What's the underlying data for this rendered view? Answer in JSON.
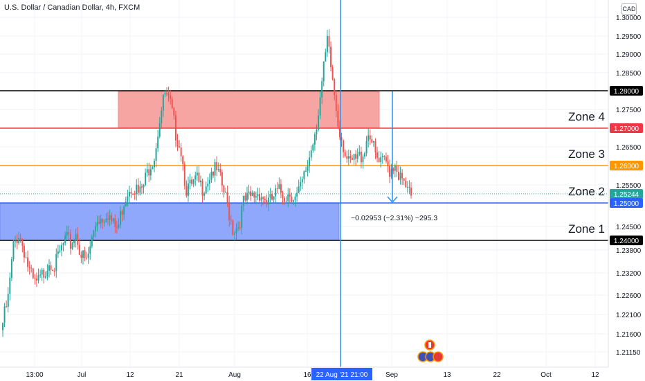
{
  "header": {
    "title": "U.S. Dollar / Canadian Dollar, 4h, FXCM",
    "currency_badge": "CAD"
  },
  "chart_data": {
    "type": "candlestick",
    "symbol": "U.S. Dollar / Canadian Dollar",
    "interval": "4h",
    "source": "FXCM",
    "y_axis": {
      "ticks": [
        "1.30000",
        "1.29500",
        "1.29000",
        "1.28500",
        "1.27500",
        "1.26500",
        "1.25500",
        "1.24500",
        "1.23800",
        "1.23200",
        "1.22600",
        "1.22100",
        "1.21600",
        "1.21150"
      ]
    },
    "x_axis": {
      "ticks": [
        "13:00",
        "Jul",
        "12",
        "21",
        "Aug",
        "16",
        "Sep",
        "13",
        "22",
        "Oct",
        "12"
      ],
      "crosshair_label": "22 Aug '21  21:00"
    },
    "levels": [
      {
        "value": 1.28,
        "label": "1.28000",
        "color": "#000000"
      },
      {
        "value": 1.27,
        "label": "1.27000",
        "color": "#f23645"
      },
      {
        "value": 1.26,
        "label": "1.26000",
        "color": "#ff9800"
      },
      {
        "value": 1.25244,
        "label": "1.25244",
        "color": "#26a69a",
        "type": "last-price"
      },
      {
        "value": 1.25,
        "label": "1.25000",
        "color": "#2962ff"
      },
      {
        "value": 1.24,
        "label": "1.24000",
        "color": "#000000"
      }
    ],
    "zones": [
      {
        "name": "Zone 4",
        "low": 1.27,
        "high": 1.28
      },
      {
        "name": "Zone 3",
        "low": 1.26,
        "high": 1.27
      },
      {
        "name": "Zone 2",
        "low": 1.25,
        "high": 1.26
      },
      {
        "name": "Zone 1",
        "low": 1.24,
        "high": 1.25
      }
    ],
    "measure_label": "−0.02953 (−2.31%) −295.3",
    "series_close": [
      1.218,
      1.224,
      1.238,
      1.242,
      1.238,
      1.232,
      1.228,
      1.229,
      1.232,
      1.235,
      1.233,
      1.237,
      1.24,
      1.239,
      1.242,
      1.236,
      1.234,
      1.24,
      1.246,
      1.246,
      1.248,
      1.244,
      1.243,
      1.25,
      1.254,
      1.255,
      1.252,
      1.255,
      1.26,
      1.263,
      1.273,
      1.279,
      1.276,
      1.269,
      1.265,
      1.254,
      1.254,
      1.256,
      1.254,
      1.256,
      1.259,
      1.258,
      1.254,
      1.249,
      1.243,
      1.244,
      1.25,
      1.251,
      1.252,
      1.253,
      1.251,
      1.25,
      1.252,
      1.253,
      1.252,
      1.253,
      1.251,
      1.254,
      1.259,
      1.265,
      1.272,
      1.282,
      1.293,
      1.283,
      1.272,
      1.266,
      1.26,
      1.261,
      1.262,
      1.264,
      1.27,
      1.263,
      1.26,
      1.261,
      1.259,
      1.261,
      1.256,
      1.254,
      1.251
    ]
  }
}
